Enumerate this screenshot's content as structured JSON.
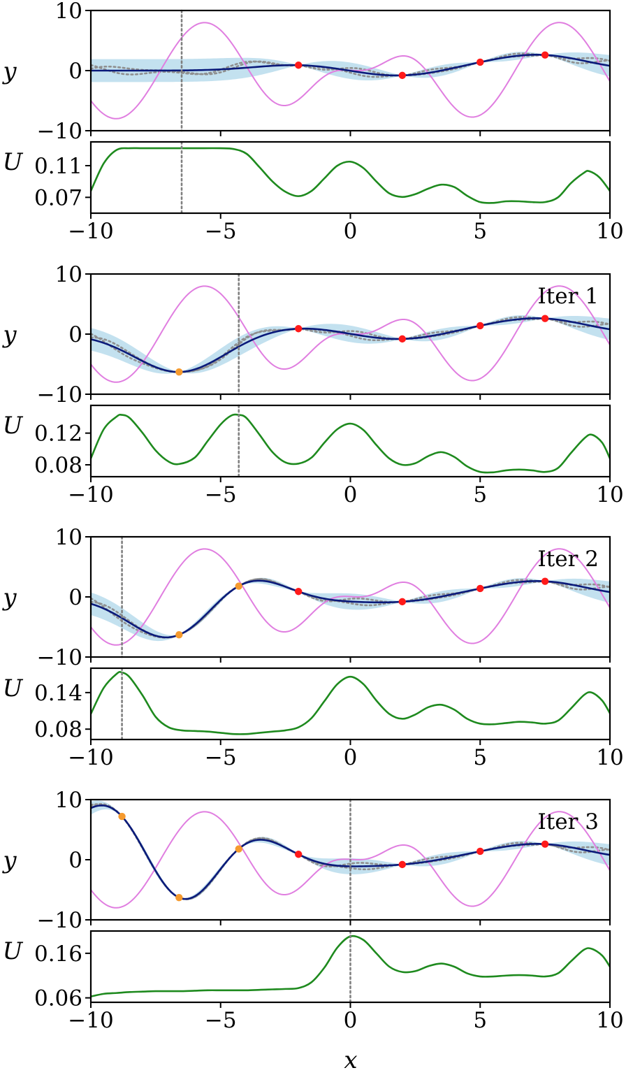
{
  "chart_data": {
    "type": "line",
    "title": "",
    "xlabel": "x",
    "xlim": [
      -10,
      10
    ],
    "xticks": [
      -10,
      -5,
      0,
      5,
      10
    ],
    "colors": {
      "true_function": "#e07ee0",
      "gp_mean": "#0a1a7a",
      "gp_band": "#c3e1ef",
      "samples": "#8f8f8f",
      "acquisition": "#1e8a1e",
      "initial_points": "#ff1a1a",
      "acquired_points": "#f59a2e",
      "next_point_line": "#808080"
    },
    "initial_observations": {
      "x": [
        -2,
        2,
        5,
        7.5
      ],
      "y": [
        0.9,
        -0.8,
        1.4,
        2.6
      ]
    },
    "panels": [
      {
        "iter_label": "",
        "next_x": -6.5,
        "acquired": {
          "x": [],
          "y": []
        },
        "y_panel": {
          "ylabel": "y",
          "ylim": [
            -10,
            10
          ],
          "yticks": [
            -10,
            0,
            10
          ]
        },
        "u_panel": {
          "ylabel": "U",
          "ylim": [
            0.05,
            0.14
          ],
          "yticks": [
            0.07,
            0.11
          ],
          "curve": {
            "x": [
              -10,
              -9.5,
              -9,
              -8.5,
              -8,
              -7,
              -6,
              -5,
              -4.5,
              -4,
              -3.5,
              -3,
              -2.5,
              -2,
              -1.5,
              -1,
              -0.5,
              0,
              0.5,
              1,
              1.5,
              2,
              2.5,
              3,
              3.5,
              4,
              4.5,
              5,
              5.5,
              6,
              6.5,
              7,
              7.5,
              8,
              8.5,
              9,
              9.2,
              9.6,
              10
            ],
            "y": [
              0.078,
              0.113,
              0.13,
              0.132,
              0.132,
              0.132,
              0.132,
              0.132,
              0.131,
              0.125,
              0.108,
              0.09,
              0.077,
              0.0715,
              0.078,
              0.094,
              0.11,
              0.115,
              0.107,
              0.09,
              0.075,
              0.0705,
              0.074,
              0.081,
              0.086,
              0.083,
              0.072,
              0.064,
              0.063,
              0.065,
              0.065,
              0.064,
              0.064,
              0.07,
              0.088,
              0.101,
              0.103,
              0.095,
              0.078
            ]
          }
        }
      },
      {
        "iter_label": "Iter 1",
        "next_x": -4.3,
        "acquired": {
          "x": [
            -6.6
          ],
          "y": [
            -6.3
          ]
        },
        "y_panel": {
          "ylabel": "y",
          "ylim": [
            -10,
            10
          ],
          "yticks": [
            -10,
            0,
            10
          ]
        },
        "u_panel": {
          "ylabel": "U",
          "ylim": [
            0.065,
            0.155
          ],
          "yticks": [
            0.08,
            0.12
          ],
          "curve": {
            "x": [
              -10,
              -9.5,
              -9,
              -8.8,
              -8.5,
              -8,
              -7.5,
              -7,
              -6.6,
              -6,
              -5.5,
              -5,
              -4.6,
              -4.3,
              -4,
              -3.5,
              -3,
              -2.5,
              -2,
              -1.5,
              -1,
              -0.5,
              0,
              0.5,
              1,
              1.5,
              2,
              2.5,
              3,
              3.5,
              4,
              4.5,
              5,
              5.5,
              6,
              6.5,
              7,
              7.5,
              8,
              8.5,
              9,
              9.3,
              9.7,
              10
            ],
            "y": [
              0.088,
              0.125,
              0.141,
              0.143,
              0.139,
              0.12,
              0.098,
              0.084,
              0.081,
              0.089,
              0.11,
              0.131,
              0.142,
              0.143,
              0.139,
              0.118,
              0.096,
              0.083,
              0.0815,
              0.089,
              0.108,
              0.125,
              0.132,
              0.124,
              0.105,
              0.088,
              0.08,
              0.082,
              0.091,
              0.096,
              0.09,
              0.078,
              0.071,
              0.0705,
              0.073,
              0.074,
              0.073,
              0.071,
              0.076,
              0.095,
              0.113,
              0.118,
              0.108,
              0.088
            ]
          }
        }
      },
      {
        "iter_label": "Iter 2",
        "next_x": -8.8,
        "acquired": {
          "x": [
            -6.6,
            -4.3
          ],
          "y": [
            -6.3,
            1.8
          ]
        },
        "y_panel": {
          "ylabel": "y",
          "ylim": [
            -10,
            10
          ],
          "yticks": [
            -10,
            0,
            10
          ]
        },
        "u_panel": {
          "ylabel": "U",
          "ylim": [
            0.063,
            0.18
          ],
          "yticks": [
            0.08,
            0.14
          ],
          "curve": {
            "x": [
              -10,
              -9.5,
              -9,
              -8.8,
              -8.5,
              -8,
              -7.5,
              -7,
              -6.5,
              -6,
              -5.5,
              -5,
              -4.5,
              -4,
              -3.5,
              -3,
              -2.5,
              -2,
              -1.5,
              -1,
              -0.5,
              0,
              0.5,
              1,
              1.5,
              2,
              2.5,
              3,
              3.5,
              4,
              4.5,
              5,
              5.5,
              6,
              6.5,
              7,
              7.5,
              8,
              8.5,
              9,
              9.3,
              9.7,
              10
            ],
            "y": [
              0.105,
              0.148,
              0.171,
              0.173,
              0.165,
              0.135,
              0.1,
              0.083,
              0.078,
              0.077,
              0.076,
              0.074,
              0.072,
              0.072,
              0.074,
              0.076,
              0.078,
              0.083,
              0.098,
              0.126,
              0.154,
              0.166,
              0.154,
              0.127,
              0.105,
              0.097,
              0.104,
              0.116,
              0.12,
              0.112,
              0.097,
              0.089,
              0.088,
              0.09,
              0.092,
              0.091,
              0.089,
              0.094,
              0.114,
              0.136,
              0.14,
              0.127,
              0.106
            ]
          }
        }
      },
      {
        "iter_label": "Iter 3",
        "next_x": 0,
        "acquired": {
          "x": [
            -8.8,
            -6.6,
            -4.3
          ],
          "y": [
            7.2,
            -6.3,
            1.8
          ]
        },
        "y_panel": {
          "ylabel": "y",
          "ylim": [
            -10,
            10
          ],
          "yticks": [
            -10,
            0,
            10
          ]
        },
        "u_panel": {
          "ylabel": "U",
          "ylim": [
            0.05,
            0.21
          ],
          "yticks": [
            0.06,
            0.16
          ],
          "curve": {
            "x": [
              -10,
              -9.5,
              -9,
              -8.5,
              -8,
              -7.5,
              -7,
              -6.5,
              -6,
              -5.5,
              -5,
              -4.5,
              -4,
              -3.5,
              -3,
              -2.5,
              -2,
              -1.5,
              -1,
              -0.5,
              0,
              0.5,
              1,
              1.5,
              2,
              2.5,
              3,
              3.5,
              4,
              4.5,
              5,
              5.5,
              6,
              6.5,
              7,
              7.5,
              8,
              8.5,
              9,
              9.3,
              9.7,
              10
            ],
            "y": [
              0.063,
              0.069,
              0.071,
              0.073,
              0.074,
              0.075,
              0.075,
              0.075,
              0.076,
              0.077,
              0.077,
              0.077,
              0.077,
              0.078,
              0.079,
              0.08,
              0.082,
              0.095,
              0.128,
              0.173,
              0.198,
              0.19,
              0.16,
              0.13,
              0.118,
              0.12,
              0.131,
              0.137,
              0.13,
              0.115,
              0.108,
              0.108,
              0.11,
              0.111,
              0.11,
              0.108,
              0.115,
              0.142,
              0.168,
              0.17,
              0.155,
              0.13
            ]
          }
        }
      }
    ]
  }
}
